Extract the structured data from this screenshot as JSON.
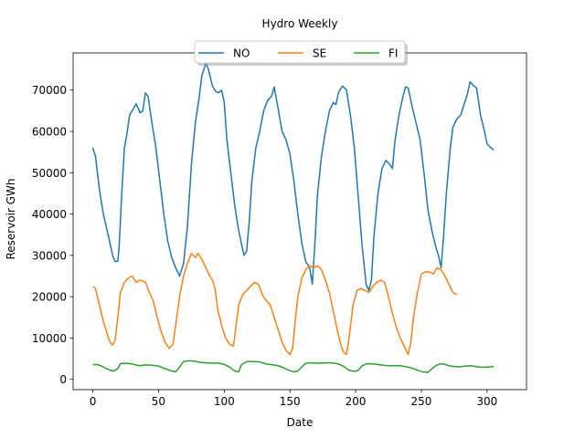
{
  "chart_data": {
    "type": "line",
    "title": "Hydro Weekly",
    "xlabel": "Date",
    "ylabel": "Reservoir GWh",
    "xlim": [
      -15,
      330
    ],
    "ylim": [
      -2500,
      79000
    ],
    "xticks": [
      0,
      50,
      100,
      150,
      200,
      250,
      300
    ],
    "yticks": [
      0,
      10000,
      20000,
      30000,
      40000,
      50000,
      60000,
      70000
    ],
    "grid": false,
    "legend_position": "top-center",
    "series": [
      {
        "name": "NO",
        "color": "#1f77b4",
        "points": [
          [
            0,
            56000
          ],
          [
            2,
            54000
          ],
          [
            5,
            46000
          ],
          [
            8,
            40000
          ],
          [
            12,
            34500
          ],
          [
            15,
            30000
          ],
          [
            17,
            28500
          ],
          [
            19,
            28600
          ],
          [
            20,
            32000
          ],
          [
            22,
            45000
          ],
          [
            24,
            56000
          ],
          [
            26,
            59500
          ],
          [
            28,
            64000
          ],
          [
            30,
            65000
          ],
          [
            33,
            66700
          ],
          [
            36,
            64500
          ],
          [
            38,
            65000
          ],
          [
            40,
            69300
          ],
          [
            42,
            68500
          ],
          [
            45,
            62000
          ],
          [
            48,
            56000
          ],
          [
            51,
            48000
          ],
          [
            54,
            40000
          ],
          [
            57,
            33500
          ],
          [
            60,
            29500
          ],
          [
            63,
            27000
          ],
          [
            66,
            25000
          ],
          [
            69,
            28000
          ],
          [
            72,
            37000
          ],
          [
            75,
            52000
          ],
          [
            78,
            62000
          ],
          [
            81,
            68500
          ],
          [
            83,
            73500
          ],
          [
            86,
            76500
          ],
          [
            88,
            75000
          ],
          [
            91,
            71000
          ],
          [
            94,
            69500
          ],
          [
            96,
            69400
          ],
          [
            98,
            70000
          ],
          [
            100,
            67000
          ],
          [
            102,
            58000
          ],
          [
            105,
            50000
          ],
          [
            108,
            42000
          ],
          [
            111,
            36000
          ],
          [
            115,
            30000
          ],
          [
            117,
            31000
          ],
          [
            119,
            38000
          ],
          [
            121,
            48000
          ],
          [
            124,
            56000
          ],
          [
            127,
            60000
          ],
          [
            130,
            65000
          ],
          [
            133,
            67500
          ],
          [
            136,
            68500
          ],
          [
            138,
            70800
          ],
          [
            141,
            65500
          ],
          [
            144,
            60000
          ],
          [
            147,
            58000
          ],
          [
            150,
            54500
          ],
          [
            153,
            48000
          ],
          [
            156,
            40000
          ],
          [
            159,
            33000
          ],
          [
            162,
            28500
          ],
          [
            165,
            27000
          ],
          [
            167,
            23000
          ],
          [
            169,
            33000
          ],
          [
            171,
            45000
          ],
          [
            174,
            54000
          ],
          [
            177,
            60000
          ],
          [
            180,
            65000
          ],
          [
            183,
            67000
          ],
          [
            185,
            66500
          ],
          [
            187,
            69500
          ],
          [
            190,
            71000
          ],
          [
            193,
            70000
          ],
          [
            196,
            64000
          ],
          [
            199,
            56000
          ],
          [
            202,
            44000
          ],
          [
            205,
            32000
          ],
          [
            208,
            23000
          ],
          [
            210,
            21500
          ],
          [
            212,
            24000
          ],
          [
            214,
            35000
          ],
          [
            217,
            45000
          ],
          [
            220,
            51000
          ],
          [
            223,
            53000
          ],
          [
            226,
            52000
          ],
          [
            228,
            51000
          ],
          [
            230,
            58000
          ],
          [
            233,
            64000
          ],
          [
            236,
            68500
          ],
          [
            238,
            70800
          ],
          [
            240,
            70500
          ],
          [
            243,
            66000
          ],
          [
            246,
            62000
          ],
          [
            249,
            58000
          ],
          [
            252,
            50000
          ],
          [
            255,
            41000
          ],
          [
            258,
            36000
          ],
          [
            261,
            32000
          ],
          [
            263,
            30000
          ],
          [
            265,
            27000
          ],
          [
            267,
            35000
          ],
          [
            269,
            45000
          ],
          [
            272,
            56000
          ],
          [
            274,
            61000
          ],
          [
            277,
            63000
          ],
          [
            280,
            64000
          ],
          [
            282,
            66000
          ],
          [
            285,
            69000
          ],
          [
            287,
            72000
          ],
          [
            290,
            71000
          ],
          [
            292,
            70500
          ],
          [
            295,
            64000
          ],
          [
            298,
            60000
          ],
          [
            300,
            57000
          ],
          [
            303,
            56000
          ],
          [
            305,
            55500
          ]
        ]
      },
      {
        "name": "SE",
        "color": "#ff7f0e",
        "points": [
          [
            0,
            22500
          ],
          [
            2,
            22000
          ],
          [
            5,
            18000
          ],
          [
            8,
            14000
          ],
          [
            11,
            11000
          ],
          [
            13,
            9000
          ],
          [
            15,
            8300
          ],
          [
            17,
            9500
          ],
          [
            19,
            15000
          ],
          [
            21,
            21000
          ],
          [
            24,
            23500
          ],
          [
            27,
            24500
          ],
          [
            30,
            25000
          ],
          [
            33,
            23500
          ],
          [
            36,
            24000
          ],
          [
            38,
            23800
          ],
          [
            40,
            23500
          ],
          [
            43,
            21000
          ],
          [
            46,
            19000
          ],
          [
            49,
            15000
          ],
          [
            52,
            11500
          ],
          [
            55,
            9000
          ],
          [
            58,
            7500
          ],
          [
            61,
            8500
          ],
          [
            63,
            13000
          ],
          [
            66,
            20000
          ],
          [
            69,
            25000
          ],
          [
            72,
            28000
          ],
          [
            75,
            30500
          ],
          [
            78,
            29500
          ],
          [
            80,
            30500
          ],
          [
            83,
            29000
          ],
          [
            86,
            27000
          ],
          [
            89,
            25000
          ],
          [
            91,
            24000
          ],
          [
            93,
            22000
          ],
          [
            95,
            17000
          ],
          [
            98,
            13000
          ],
          [
            101,
            10000
          ],
          [
            104,
            8500
          ],
          [
            107,
            8000
          ],
          [
            109,
            13000
          ],
          [
            111,
            18000
          ],
          [
            114,
            20500
          ],
          [
            117,
            21500
          ],
          [
            120,
            22500
          ],
          [
            123,
            23500
          ],
          [
            126,
            23000
          ],
          [
            129,
            20500
          ],
          [
            132,
            19000
          ],
          [
            135,
            18000
          ],
          [
            138,
            15000
          ],
          [
            141,
            12000
          ],
          [
            144,
            9000
          ],
          [
            147,
            7000
          ],
          [
            150,
            6000
          ],
          [
            152,
            7500
          ],
          [
            154,
            14000
          ],
          [
            156,
            20000
          ],
          [
            159,
            24500
          ],
          [
            162,
            26500
          ],
          [
            165,
            27500
          ],
          [
            168,
            27000
          ],
          [
            171,
            27500
          ],
          [
            174,
            26500
          ],
          [
            177,
            24000
          ],
          [
            180,
            21000
          ],
          [
            183,
            16500
          ],
          [
            186,
            12000
          ],
          [
            189,
            8000
          ],
          [
            191,
            6500
          ],
          [
            193,
            6000
          ],
          [
            195,
            10000
          ],
          [
            198,
            18000
          ],
          [
            201,
            21500
          ],
          [
            204,
            22000
          ],
          [
            207,
            21500
          ],
          [
            210,
            21000
          ],
          [
            213,
            22500
          ],
          [
            216,
            23500
          ],
          [
            219,
            24000
          ],
          [
            222,
            23500
          ],
          [
            225,
            20000
          ],
          [
            228,
            16000
          ],
          [
            231,
            12500
          ],
          [
            234,
            10000
          ],
          [
            237,
            8000
          ],
          [
            240,
            6000
          ],
          [
            242,
            9000
          ],
          [
            244,
            15000
          ],
          [
            247,
            21000
          ],
          [
            250,
            25500
          ],
          [
            253,
            26000
          ],
          [
            256,
            26000
          ],
          [
            259,
            25500
          ],
          [
            262,
            27000
          ],
          [
            265,
            26500
          ],
          [
            268,
            25000
          ],
          [
            271,
            23000
          ],
          [
            274,
            21000
          ],
          [
            277,
            20500
          ]
        ]
      },
      {
        "name": "FI",
        "color": "#2ca02c",
        "points": [
          [
            0,
            3500
          ],
          [
            3,
            3600
          ],
          [
            6,
            3300
          ],
          [
            9,
            2800
          ],
          [
            13,
            2200
          ],
          [
            16,
            2000
          ],
          [
            19,
            2600
          ],
          [
            21,
            3800
          ],
          [
            25,
            3900
          ],
          [
            30,
            3700
          ],
          [
            35,
            3300
          ],
          [
            40,
            3500
          ],
          [
            45,
            3400
          ],
          [
            50,
            3200
          ],
          [
            55,
            2600
          ],
          [
            60,
            2000
          ],
          [
            63,
            1800
          ],
          [
            66,
            3000
          ],
          [
            69,
            4300
          ],
          [
            73,
            4500
          ],
          [
            77,
            4400
          ],
          [
            82,
            4100
          ],
          [
            86,
            4000
          ],
          [
            91,
            3900
          ],
          [
            96,
            3900
          ],
          [
            100,
            3600
          ],
          [
            104,
            3000
          ],
          [
            108,
            2000
          ],
          [
            111,
            1800
          ],
          [
            113,
            3500
          ],
          [
            117,
            4300
          ],
          [
            122,
            4300
          ],
          [
            127,
            4200
          ],
          [
            132,
            3700
          ],
          [
            137,
            3500
          ],
          [
            141,
            3300
          ],
          [
            145,
            2800
          ],
          [
            149,
            2200
          ],
          [
            153,
            1800
          ],
          [
            156,
            2000
          ],
          [
            159,
            3000
          ],
          [
            162,
            3900
          ],
          [
            167,
            4000
          ],
          [
            172,
            3900
          ],
          [
            177,
            4000
          ],
          [
            182,
            4000
          ],
          [
            187,
            3700
          ],
          [
            191,
            3100
          ],
          [
            195,
            2200
          ],
          [
            199,
            1900
          ],
          [
            202,
            2200
          ],
          [
            205,
            3300
          ],
          [
            209,
            3800
          ],
          [
            214,
            3700
          ],
          [
            219,
            3500
          ],
          [
            224,
            3300
          ],
          [
            229,
            3300
          ],
          [
            234,
            3300
          ],
          [
            239,
            3000
          ],
          [
            243,
            2700
          ],
          [
            247,
            2200
          ],
          [
            251,
            1800
          ],
          [
            255,
            1700
          ],
          [
            258,
            2500
          ],
          [
            261,
            3300
          ],
          [
            264,
            3700
          ],
          [
            267,
            3700
          ],
          [
            271,
            3300
          ],
          [
            275,
            3100
          ],
          [
            279,
            3000
          ],
          [
            283,
            3200
          ],
          [
            288,
            3300
          ],
          [
            293,
            3000
          ],
          [
            297,
            2900
          ],
          [
            301,
            3000
          ],
          [
            305,
            3100
          ]
        ]
      }
    ]
  }
}
